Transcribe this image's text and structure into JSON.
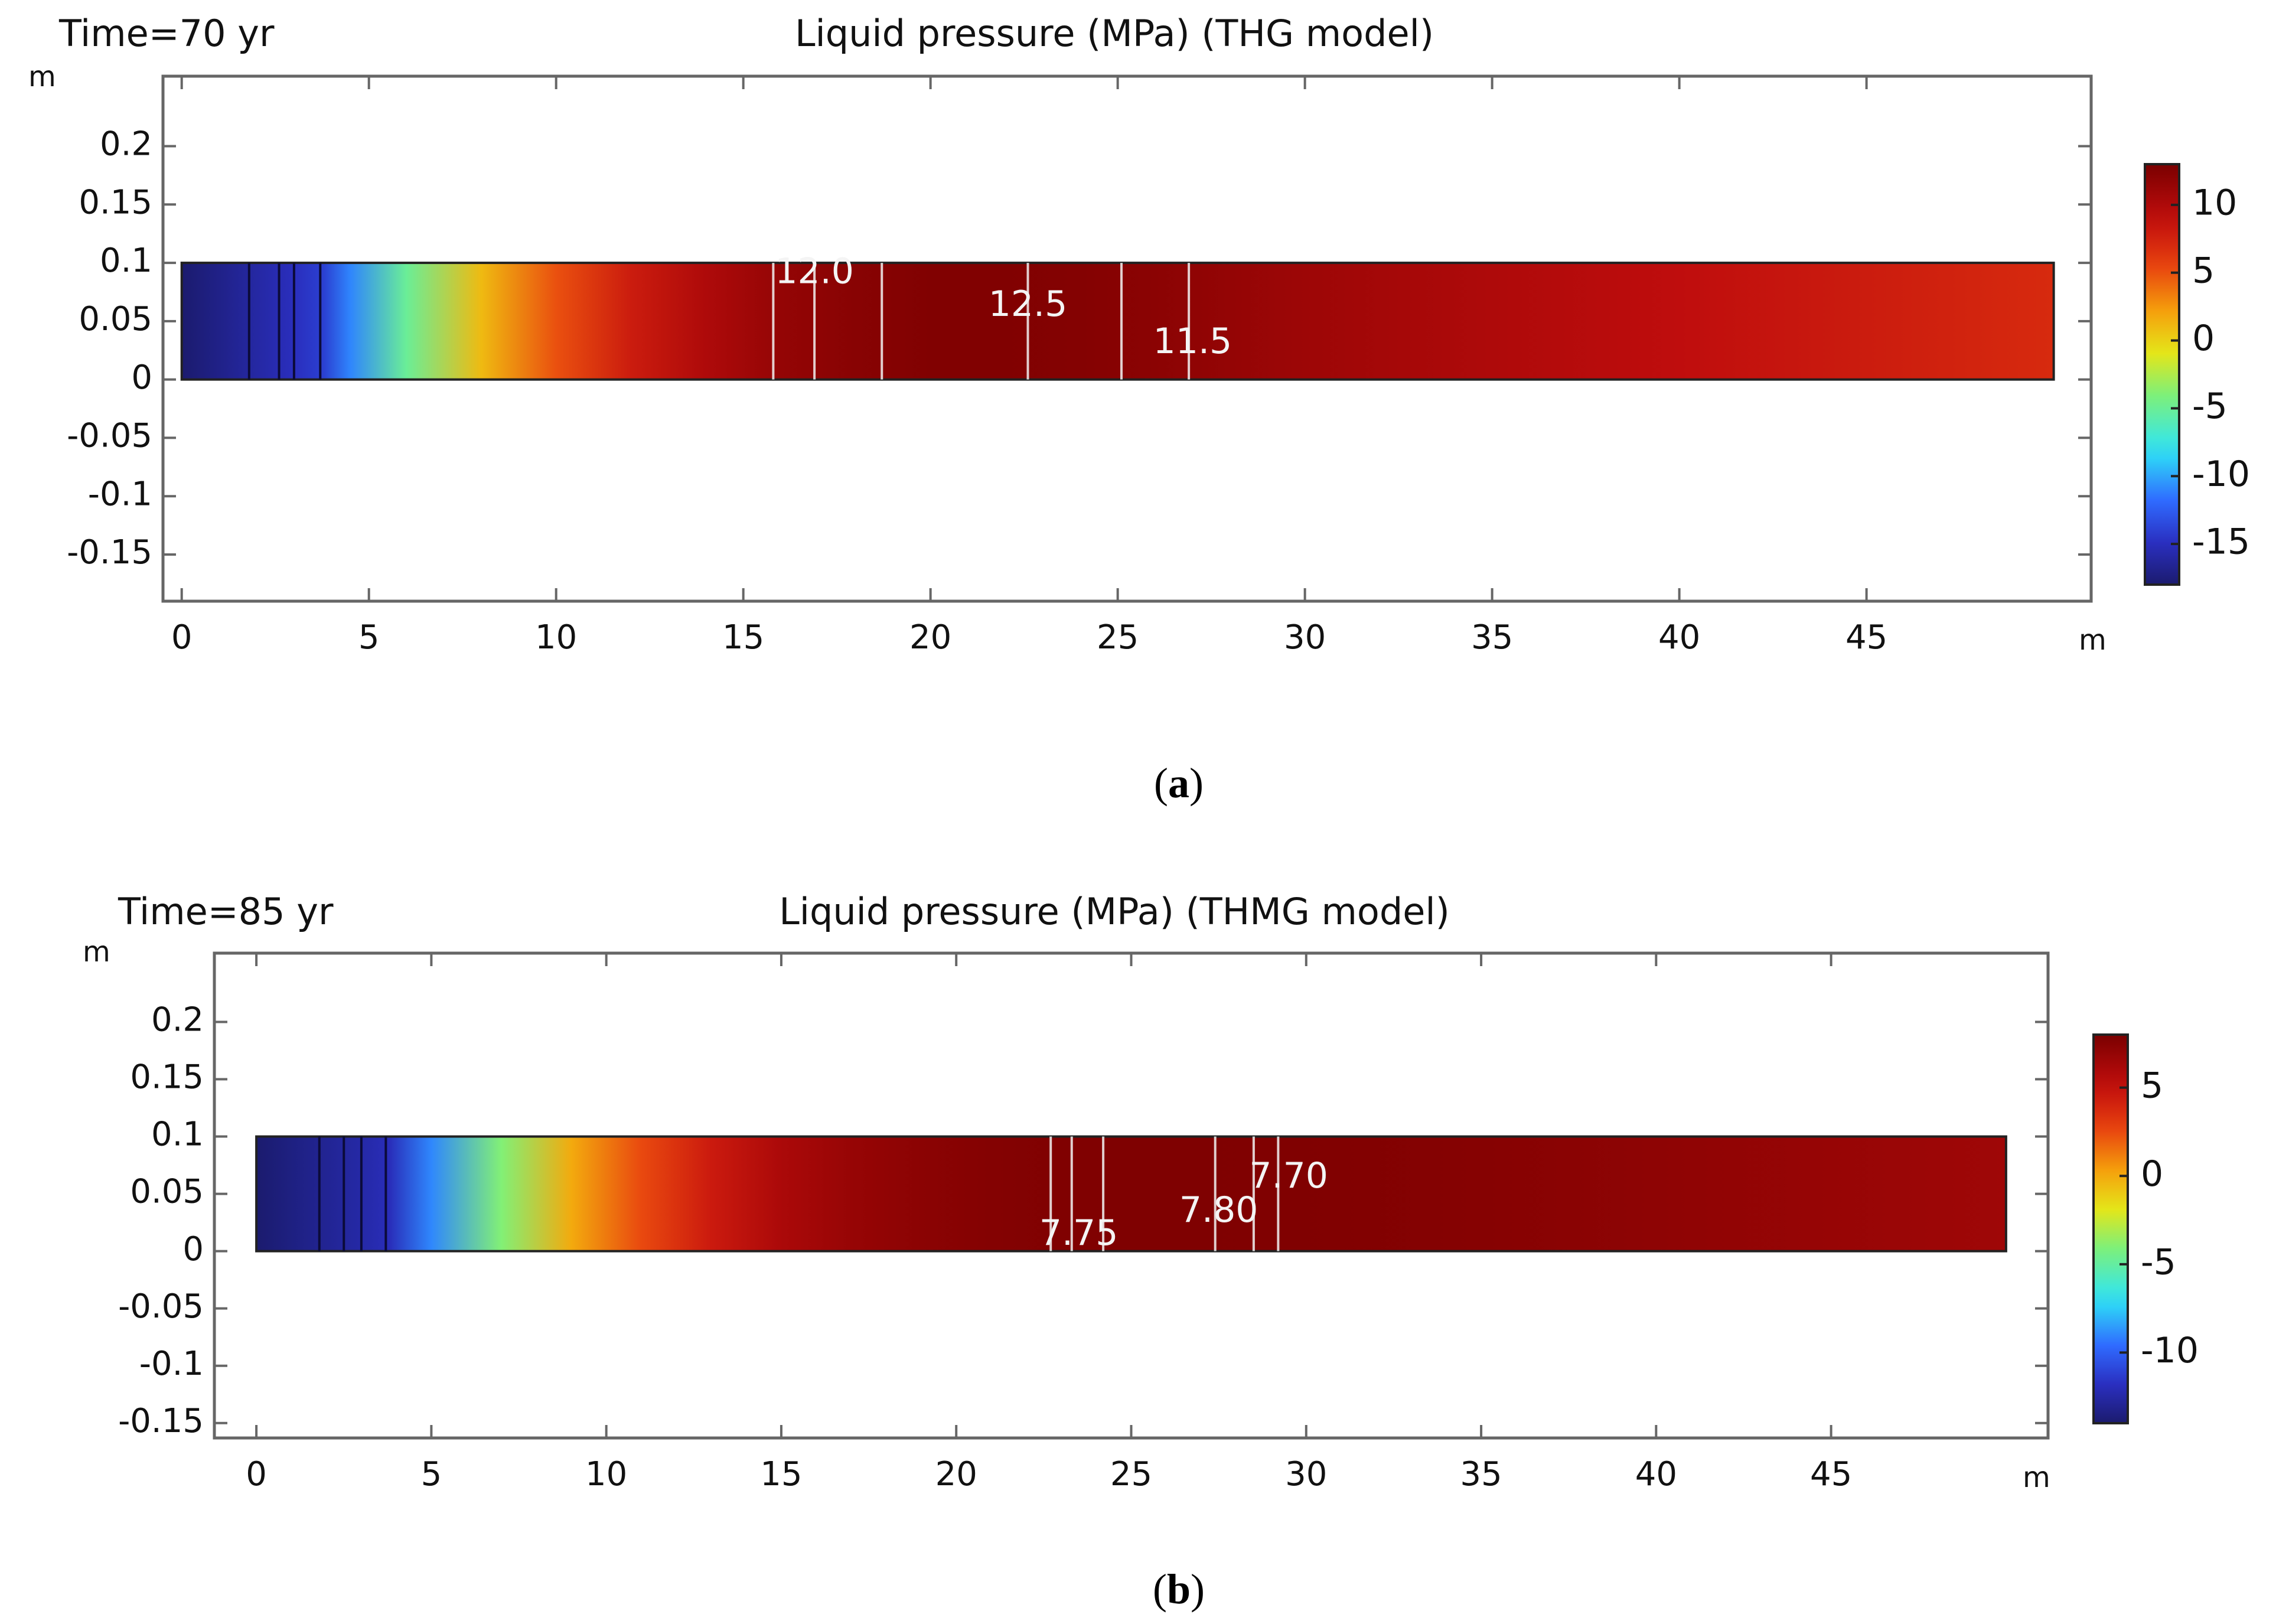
{
  "chart_data": [
    {
      "type": "heatmap",
      "panel_label": "a",
      "time_label": "Time=70 yr",
      "title": "Liquid pressure (MPa) (THG model)",
      "x_unit": "m",
      "y_unit": "m",
      "xlim": [
        -0.5,
        51
      ],
      "ylim": [
        -0.19,
        0.26
      ],
      "x_ticks": [
        0,
        5,
        10,
        15,
        20,
        25,
        30,
        35,
        40,
        45
      ],
      "x_tick_labels": [
        "0",
        "5",
        "10",
        "15",
        "20",
        "25",
        "30",
        "35",
        "40",
        "45"
      ],
      "y_ticks": [
        0.2,
        0.15,
        0.1,
        0.05,
        0,
        -0.05,
        -0.1,
        -0.15
      ],
      "y_tick_labels": [
        "0.2",
        "0.15",
        "0.1",
        "0.05",
        "0",
        "-0.05",
        "-0.1",
        "-0.15"
      ],
      "domain": {
        "x": [
          0,
          50
        ],
        "y": [
          0,
          0.1
        ]
      },
      "colorbar": {
        "range": [
          -18,
          13
        ],
        "ticks": [
          10,
          5,
          0,
          -5,
          -10,
          -15
        ],
        "tick_labels": [
          "10",
          "5",
          "0",
          "-5",
          "-10",
          "-15"
        ]
      },
      "profile": {
        "x": [
          0,
          1,
          2,
          3,
          3.8,
          4.5,
          6,
          8,
          10,
          12,
          14,
          16,
          18,
          20,
          22,
          24,
          26,
          28,
          30,
          35,
          40,
          45,
          50
        ],
        "pressure": [
          -18,
          -17,
          -16,
          -15,
          -14,
          -11,
          -5,
          1,
          5,
          8,
          10,
          11.5,
          12.2,
          12.6,
          12.6,
          12.4,
          12,
          11.5,
          11,
          10,
          9,
          8,
          7
        ]
      },
      "contours": {
        "x": [
          1.8,
          2.6,
          3.0,
          3.7,
          15.8,
          16.9,
          18.7,
          22.6,
          25.1,
          26.9
        ],
        "labels": [
          {
            "text": "12.0",
            "x": 16.9,
            "y": 0.091
          },
          {
            "text": "12.5",
            "x": 22.6,
            "y": 0.063
          },
          {
            "text": "11.5",
            "x": 27.0,
            "y": 0.031
          }
        ]
      }
    },
    {
      "type": "heatmap",
      "panel_label": "b",
      "time_label": "Time=85 yr",
      "title": "Liquid pressure (MPa) (THMG model)",
      "x_unit": "m",
      "y_unit": "m",
      "xlim": [
        -1.2,
        51.2
      ],
      "ylim": [
        -0.163,
        0.26
      ],
      "x_ticks": [
        0,
        5,
        10,
        15,
        20,
        25,
        30,
        35,
        40,
        45
      ],
      "x_tick_labels": [
        "0",
        "5",
        "10",
        "15",
        "20",
        "25",
        "30",
        "35",
        "40",
        "45"
      ],
      "y_ticks": [
        0.2,
        0.15,
        0.1,
        0.05,
        0,
        -0.05,
        -0.1,
        -0.15
      ],
      "y_tick_labels": [
        "0.2",
        "0.15",
        "0.1",
        "0.05",
        "0",
        "-0.05",
        "-0.1",
        "-0.15"
      ],
      "domain": {
        "x": [
          0,
          50
        ],
        "y": [
          0,
          0.1
        ]
      },
      "colorbar": {
        "range": [
          -14,
          8
        ],
        "ticks": [
          5,
          0,
          -5,
          -10
        ],
        "tick_labels": [
          "5",
          "0",
          "-5",
          "-10"
        ]
      },
      "profile": {
        "x": [
          0,
          1,
          2,
          3,
          3.8,
          5,
          7,
          9,
          11,
          13,
          15,
          17,
          19,
          21,
          23,
          25,
          27,
          29,
          31,
          35,
          40,
          45,
          50
        ],
        "pressure": [
          -14,
          -13.5,
          -13,
          -12.5,
          -12,
          -9,
          -4,
          0,
          2.5,
          4.5,
          6,
          6.8,
          7.3,
          7.6,
          7.75,
          7.8,
          7.8,
          7.75,
          7.7,
          7.5,
          7.2,
          6.8,
          6.5
        ]
      },
      "contours": {
        "x": [
          1.8,
          2.5,
          3.0,
          3.7,
          22.7,
          23.3,
          24.2,
          27.4,
          28.5,
          29.2
        ],
        "labels": [
          {
            "text": "7.75",
            "x": 23.5,
            "y": 0.014
          },
          {
            "text": "7.80",
            "x": 27.5,
            "y": 0.034
          },
          {
            "text": "7.70",
            "x": 29.5,
            "y": 0.064
          }
        ]
      }
    }
  ]
}
